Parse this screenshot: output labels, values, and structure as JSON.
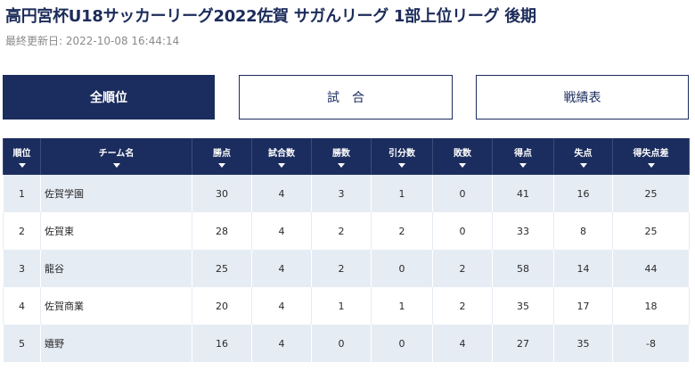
{
  "header": {
    "title": "高円宮杯U18サッカーリーグ2022佐賀 サガんリーグ 1部上位リーグ 後期",
    "updated": "最終更新日: 2022-10-08 16:44:14"
  },
  "tabs": [
    {
      "label": "全順位",
      "active": true
    },
    {
      "label": "試　合",
      "active": false
    },
    {
      "label": "戦績表",
      "active": false
    }
  ],
  "table": {
    "columns": [
      "順位",
      "チーム名",
      "勝点",
      "試合数",
      "勝数",
      "引分数",
      "敗数",
      "得点",
      "失点",
      "得失点差"
    ],
    "rows": [
      {
        "rank": "1",
        "team": "佐賀学園",
        "points": "30",
        "played": "4",
        "won": "3",
        "drawn": "1",
        "lost": "0",
        "gf": "41",
        "ga": "16",
        "gd": "25"
      },
      {
        "rank": "2",
        "team": "佐賀東",
        "points": "28",
        "played": "4",
        "won": "2",
        "drawn": "2",
        "lost": "0",
        "gf": "33",
        "ga": "8",
        "gd": "25"
      },
      {
        "rank": "3",
        "team": "龍谷",
        "points": "25",
        "played": "4",
        "won": "2",
        "drawn": "0",
        "lost": "2",
        "gf": "58",
        "ga": "14",
        "gd": "44"
      },
      {
        "rank": "4",
        "team": "佐賀商業",
        "points": "20",
        "played": "4",
        "won": "1",
        "drawn": "1",
        "lost": "2",
        "gf": "35",
        "ga": "17",
        "gd": "18"
      },
      {
        "rank": "5",
        "team": "嬉野",
        "points": "16",
        "played": "4",
        "won": "0",
        "drawn": "0",
        "lost": "4",
        "gf": "27",
        "ga": "35",
        "gd": "-8"
      }
    ]
  }
}
